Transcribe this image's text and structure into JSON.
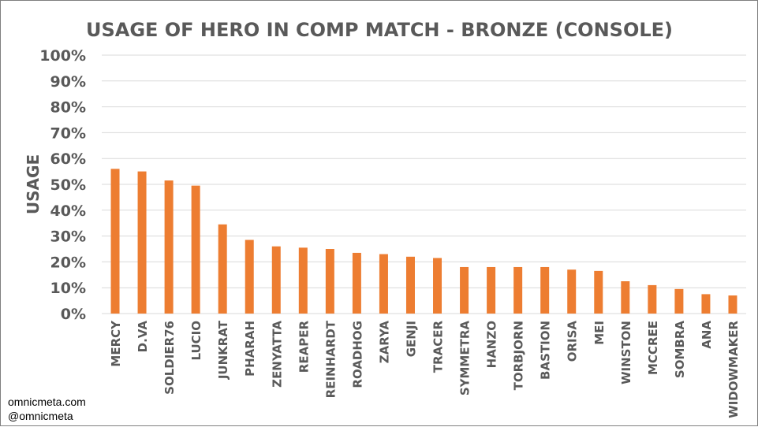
{
  "chart_data": {
    "type": "bar",
    "title": "USAGE OF HERO IN COMP MATCH - BRONZE (CONSOLE)",
    "xlabel": "",
    "ylabel": "USAGE",
    "ylim": [
      0,
      100
    ],
    "y_ticks": [
      "0%",
      "10%",
      "20%",
      "30%",
      "40%",
      "50%",
      "60%",
      "70%",
      "80%",
      "90%",
      "100%"
    ],
    "grid": true,
    "legend": "none",
    "categories": [
      "MERCY",
      "D.VA",
      "SOLDIER76",
      "LUCIO",
      "JUNKRAT",
      "PHARAH",
      "ZENYATTA",
      "REAPER",
      "REINHARDT",
      "ROADHOG",
      "ZARYA",
      "GENJI",
      "TRACER",
      "SYMMETRA",
      "HANZO",
      "TORBJORN",
      "BASTION",
      "ORISA",
      "MEI",
      "WINSTON",
      "MCCREE",
      "SOMBRA",
      "ANA",
      "WIDOWMAKER"
    ],
    "values": [
      56,
      55,
      51.5,
      49.5,
      34.5,
      28.5,
      26,
      25.5,
      25,
      23.5,
      23,
      22,
      21.5,
      18,
      18,
      18,
      18,
      17,
      16.5,
      12.5,
      11,
      9.5,
      7.5,
      7
    ],
    "colors": {
      "bar": "#ED7D31",
      "grid": "#D9D9D9",
      "text": "#595959"
    }
  },
  "watermark": {
    "line1": "omnicmeta.com",
    "line2": "@omnicmeta"
  }
}
